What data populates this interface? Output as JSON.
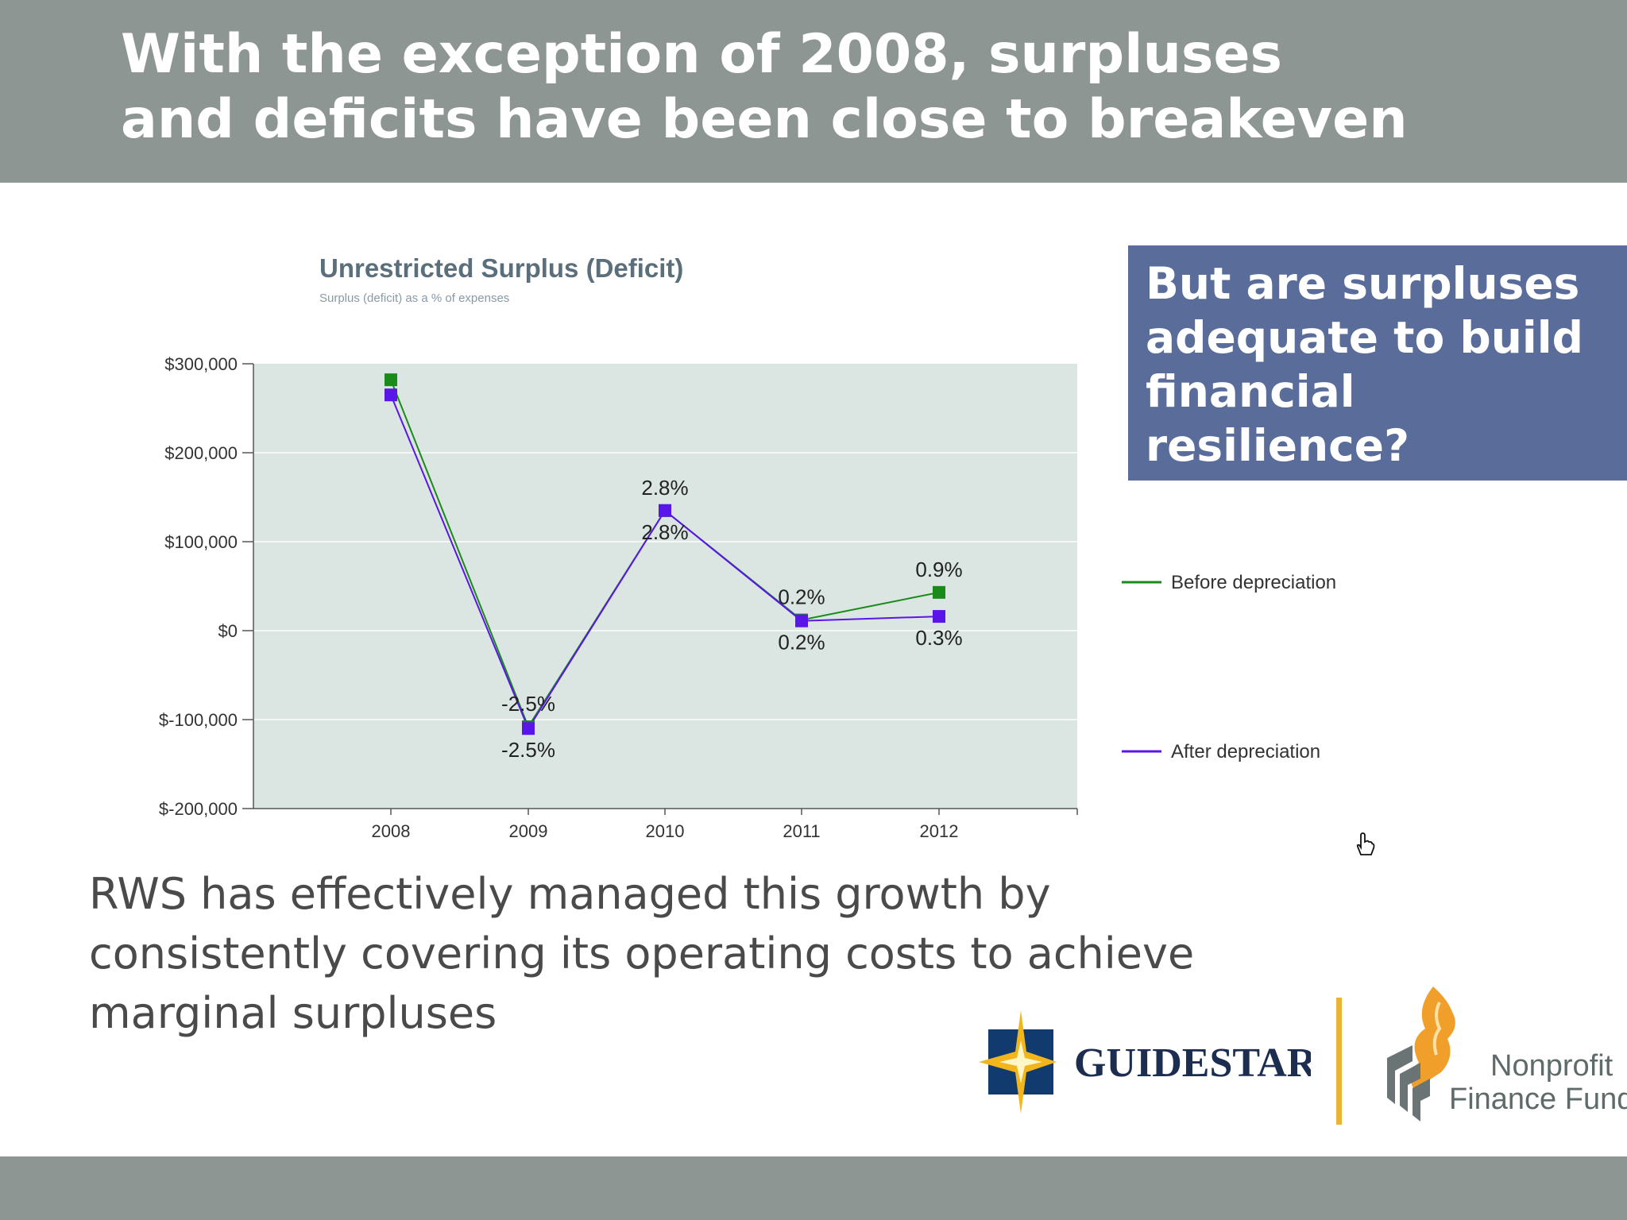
{
  "slide": {
    "title_line1": "With the exception of 2008, surpluses",
    "title_line2": "and deficits have been close to breakeven",
    "callout": "But are surpluses adequate to build financial resilience?",
    "body": "RWS has effectively managed this growth by consistently covering its operating costs to achieve marginal surpluses"
  },
  "logos": {
    "guidestar": "GUIDESTAR",
    "nff_line1": "Nonprofit",
    "nff_line2": "Finance Fund"
  },
  "colors": {
    "band": "#8e9693",
    "callout_bg": "#5a6c99",
    "plot_bg": "#dbe6e3",
    "before": "#1a8a1a",
    "after": "#5a16e8",
    "chart_title": "#5b6e7b"
  },
  "chart_data": {
    "type": "line",
    "title": "Unrestricted Surplus (Deficit)",
    "subtitle": "Surplus (deficit) as a % of expenses",
    "x": [
      "2008",
      "2009",
      "2010",
      "2011",
      "2012"
    ],
    "ylim": [
      -200000,
      300000
    ],
    "yticks": [
      {
        "value": 300000,
        "label": "$300,000"
      },
      {
        "value": 200000,
        "label": "$200,000"
      },
      {
        "value": 100000,
        "label": "$100,000"
      },
      {
        "value": 0,
        "label": "$0"
      },
      {
        "value": -100000,
        "label": "$-100,000"
      },
      {
        "value": -200000,
        "label": "$-200,000"
      }
    ],
    "grid": true,
    "legend_position": "right",
    "series": [
      {
        "name": "Before depreciation",
        "color": "#1a8a1a",
        "values": [
          282000,
          -108000,
          135000,
          12000,
          43000
        ],
        "labels": [
          "",
          "-2.5%",
          "2.8%",
          "0.2%",
          "0.9%"
        ],
        "label_pos": [
          "",
          "above",
          "above",
          "above",
          "above"
        ]
      },
      {
        "name": "After depreciation",
        "color": "#5a16e8",
        "values": [
          265000,
          -110000,
          135000,
          11000,
          16000
        ],
        "labels": [
          "",
          "-2.5%",
          "2.8%",
          "0.2%",
          "0.3%"
        ],
        "label_pos": [
          "",
          "below",
          "below",
          "below",
          "below"
        ]
      }
    ]
  }
}
